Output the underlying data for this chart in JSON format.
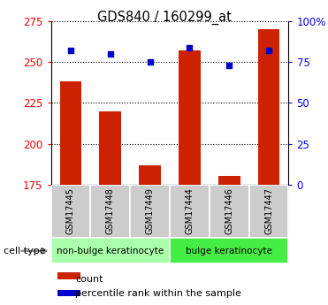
{
  "title": "GDS840 / 160299_at",
  "samples": [
    "GSM17445",
    "GSM17448",
    "GSM17449",
    "GSM17444",
    "GSM17446",
    "GSM17447"
  ],
  "counts": [
    238,
    220,
    187,
    257,
    180,
    270
  ],
  "percentiles": [
    82,
    80,
    75,
    84,
    73,
    82
  ],
  "ylim_left": [
    175,
    275
  ],
  "ylim_right": [
    0,
    100
  ],
  "yticks_left": [
    175,
    200,
    225,
    250,
    275
  ],
  "yticks_right": [
    0,
    25,
    50,
    75,
    100
  ],
  "ytick_labels_right": [
    "0",
    "25",
    "50",
    "75",
    "100%"
  ],
  "bar_color": "#cc2200",
  "dot_color": "#0000cc",
  "groups": [
    {
      "label": "non-bulge keratinocyte",
      "indices": [
        0,
        1,
        2
      ],
      "color": "#aaffaa"
    },
    {
      "label": "bulge keratinocyte",
      "indices": [
        3,
        4,
        5
      ],
      "color": "#44ee44"
    }
  ],
  "group_label_prefix": "cell type",
  "legend_count_label": "count",
  "legend_pct_label": "percentile rank within the sample",
  "bar_width": 0.55,
  "sample_bg_color": "#cccccc"
}
